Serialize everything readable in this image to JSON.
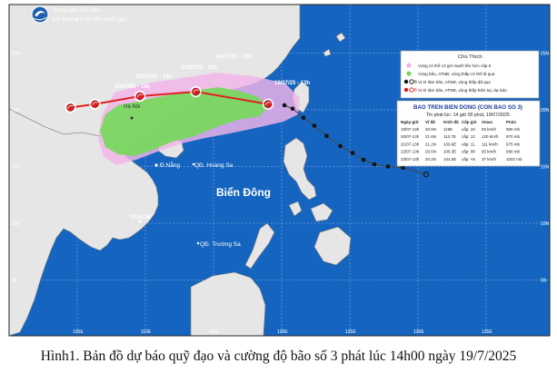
{
  "agency": {
    "line1": "Trung tâm Dự báo",
    "line2": "Khí tượng thủy văn quốc gia"
  },
  "grid": {
    "lon_labels": [
      "105E",
      "110E",
      "115E",
      "120E",
      "125E",
      "130E",
      "135E",
      "140E"
    ],
    "lat_labels": [
      "25N",
      "20N",
      "15N",
      "10N",
      "5N"
    ]
  },
  "places": {
    "ha_noi": "Hà Nội",
    "da_nang": "Đ.Nẵng",
    "hoang_sa": "QĐ. Hoàng Sa",
    "bien_dong": "Biển Đông",
    "hcm": "TP.HCM",
    "truong_sa": "QĐ. Trường Sa"
  },
  "forecast_labels": {
    "t1": "19/07/25 - 13h",
    "t2": "20/07/25 - 13h",
    "t3": "21/07/25 - 13h",
    "t4": "22/07/25 - 13h",
    "t5": "23/07/25 - 13h"
  },
  "legend": {
    "title": "Chú Thích",
    "items": [
      "Vùng có thể có gió mạnh lên hơn cấp 6",
      "Vùng bão, ATNĐ, vùng thấp có thể đi qua",
      "Vị trí tâm bão, ATNĐ, vùng thấp đã qua",
      "Vị trí tâm bão, ATNĐ, vùng thấp hiện tại, dự báo"
    ]
  },
  "bulletin": {
    "title": "BAO TREN BIEN DONG (CON BAO SO 3)",
    "issued": "Tin phát lúc: 14 giờ 00 phút, 19/07/2025",
    "headers": [
      "Ngày-giờ",
      "Vĩ độ",
      "Kinh độ",
      "Cấp gió",
      "Vmax",
      "Pmin"
    ],
    "rows": [
      [
        "19/07-13h",
        "20.5N",
        "119E",
        "cấp: 10",
        "93 km/h",
        "980 mb"
      ],
      [
        "20/07-13h",
        "21.6N",
        "113.7E",
        "cấp: 12",
        "120 km/h",
        "970 mb"
      ],
      [
        "21/07-13h",
        "21.2N",
        "109.6E",
        "cấp: 11",
        "111 km/h",
        "975 mb"
      ],
      [
        "22/07-13h",
        "20.5N",
        "106.3E",
        "cấp: 08",
        "65 km/h",
        "996 mb"
      ],
      [
        "23/07-13h",
        "20.2N",
        "104.5E",
        "cấp: <6",
        "37 km/h",
        "1002 mb"
      ]
    ]
  },
  "track": {
    "past": [
      [
        120.2,
        20.4
      ],
      [
        120.8,
        20.1
      ],
      [
        121.6,
        19.3
      ],
      [
        122.4,
        18.6
      ],
      [
        123.3,
        17.7
      ],
      [
        124.3,
        16.8
      ],
      [
        125.2,
        16.2
      ],
      [
        126.0,
        15.6
      ],
      [
        126.8,
        15.2
      ],
      [
        127.8,
        15.0
      ],
      [
        128.9,
        14.9
      ],
      [
        130.6,
        14.3
      ]
    ],
    "forecast": [
      [
        119.0,
        20.5
      ],
      [
        113.7,
        21.6
      ],
      [
        109.6,
        21.2
      ],
      [
        106.3,
        20.5
      ],
      [
        104.5,
        20.2
      ]
    ]
  },
  "colors": {
    "sea": "#1565c0",
    "land": "#e6e6e6",
    "wind_zone": "#f2b3e8",
    "cone": "#76d95b",
    "track_line": "#e02020",
    "center_marker": "#dd1c1c",
    "past_marker": "#111111"
  },
  "caption": "Hình1. Bản đồ dự báo quỹ đạo và cường độ bão số 3 phát lúc 14h00 ngày 19/7/2025"
}
